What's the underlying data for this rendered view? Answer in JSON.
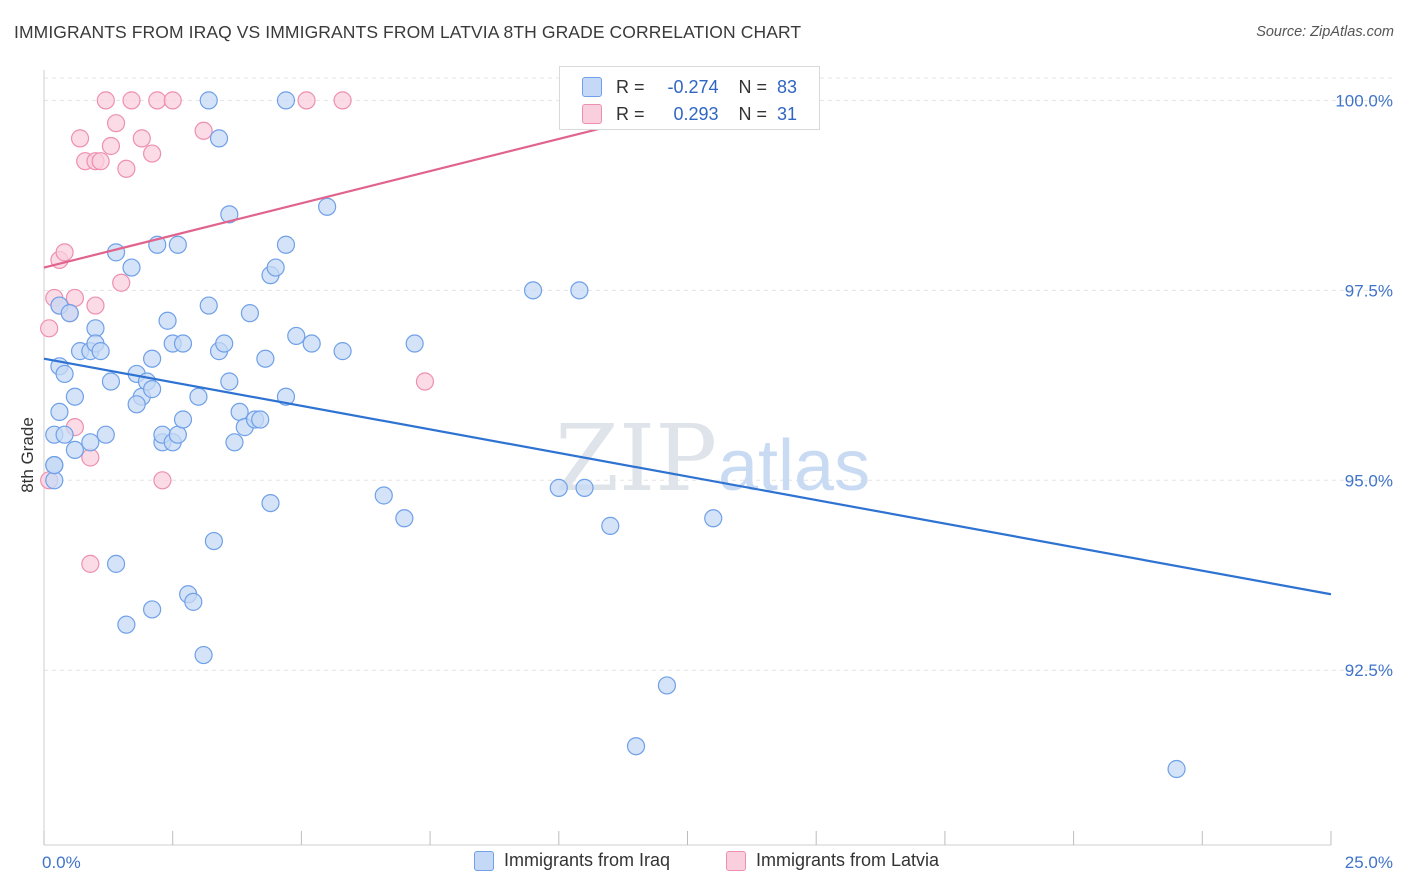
{
  "title": "IMMIGRANTS FROM IRAQ VS IMMIGRANTS FROM LATVIA 8TH GRADE CORRELATION CHART",
  "source": "Source: ZipAtlas.com",
  "watermark": {
    "zip": "ZIP",
    "atlas": "atlas"
  },
  "legend": {
    "rows": [
      {
        "r_label": "R =",
        "r_value": "-0.274",
        "n_label": "N =",
        "n_value": "83"
      },
      {
        "r_label": "R =",
        "r_value": "0.293",
        "n_label": "N =",
        "n_value": "31"
      }
    ]
  },
  "bottom_legend": [
    {
      "label": "Immigrants from Iraq"
    },
    {
      "label": "Immigrants from Latvia"
    }
  ],
  "chart_data": {
    "type": "scatter",
    "title": "IMMIGRANTS FROM IRAQ VS IMMIGRANTS FROM LATVIA 8TH GRADE CORRELATION CHART",
    "xlabel": "",
    "ylabel": "8th Grade",
    "xlim": [
      0,
      25
    ],
    "ylim": [
      90.2,
      100.4
    ],
    "x_tick_labels": [
      "0.0%",
      "25.0%"
    ],
    "y_tick_labels": [
      "100.0%",
      "97.5%",
      "95.0%",
      "92.5%"
    ],
    "y_ticks": [
      100.0,
      97.5,
      95.0,
      92.5
    ],
    "grid": true,
    "legend_position": "top-center",
    "colors": {
      "iraq": "#6fa0e8",
      "iraq_fill": "#c5d9f6",
      "latvia": "#ee8fb0",
      "latvia_fill": "#f9cfdd",
      "iraq_line": "#2e72d2",
      "latvia_line": "#e0648e",
      "tick_label": "#3f74c9"
    },
    "series": [
      {
        "name": "Immigrants from Iraq",
        "trend": {
          "x": [
            0,
            25
          ],
          "y": [
            96.6,
            93.5
          ]
        },
        "points": [
          [
            0.2,
            95.0
          ],
          [
            0.2,
            95.6
          ],
          [
            0.2,
            95.2
          ],
          [
            0.3,
            95.9
          ],
          [
            0.3,
            96.5
          ],
          [
            0.3,
            97.3
          ],
          [
            0.4,
            95.6
          ],
          [
            0.4,
            96.4
          ],
          [
            0.5,
            97.2
          ],
          [
            0.6,
            95.4
          ],
          [
            0.6,
            96.1
          ],
          [
            0.7,
            96.7
          ],
          [
            0.9,
            95.5
          ],
          [
            0.9,
            96.7
          ],
          [
            1.0,
            97.0
          ],
          [
            1.0,
            96.8
          ],
          [
            1.1,
            96.7
          ],
          [
            1.2,
            95.6
          ],
          [
            1.3,
            96.3
          ],
          [
            1.4,
            93.9
          ],
          [
            1.4,
            98.0
          ],
          [
            1.6,
            93.1
          ],
          [
            1.7,
            97.8
          ],
          [
            1.8,
            96.4
          ],
          [
            1.9,
            96.1
          ],
          [
            2.0,
            96.3
          ],
          [
            2.1,
            96.6
          ],
          [
            2.1,
            96.2
          ],
          [
            2.1,
            93.3
          ],
          [
            2.2,
            98.1
          ],
          [
            2.3,
            95.5
          ],
          [
            2.3,
            95.6
          ],
          [
            2.4,
            97.1
          ],
          [
            2.5,
            95.5
          ],
          [
            2.5,
            96.8
          ],
          [
            2.6,
            98.1
          ],
          [
            2.6,
            95.6
          ],
          [
            2.7,
            95.8
          ],
          [
            2.7,
            96.8
          ],
          [
            2.8,
            93.5
          ],
          [
            2.9,
            93.4
          ],
          [
            3.0,
            96.1
          ],
          [
            3.1,
            92.7
          ],
          [
            3.2,
            97.3
          ],
          [
            3.2,
            100.0
          ],
          [
            3.3,
            94.2
          ],
          [
            3.4,
            99.5
          ],
          [
            3.4,
            96.7
          ],
          [
            3.5,
            96.8
          ],
          [
            3.6,
            96.3
          ],
          [
            3.6,
            98.5
          ],
          [
            3.7,
            95.5
          ],
          [
            3.8,
            95.9
          ],
          [
            3.9,
            95.7
          ],
          [
            4.0,
            97.2
          ],
          [
            4.1,
            95.8
          ],
          [
            4.2,
            95.8
          ],
          [
            4.3,
            96.6
          ],
          [
            4.4,
            94.7
          ],
          [
            4.4,
            97.7
          ],
          [
            4.5,
            97.8
          ],
          [
            4.7,
            98.1
          ],
          [
            4.7,
            96.1
          ],
          [
            4.7,
            100.0
          ],
          [
            4.9,
            96.9
          ],
          [
            5.2,
            96.8
          ],
          [
            5.5,
            98.6
          ],
          [
            5.8,
            96.7
          ],
          [
            6.6,
            94.8
          ],
          [
            7.0,
            94.5
          ],
          [
            7.2,
            96.8
          ],
          [
            9.5,
            97.5
          ],
          [
            10.0,
            94.9
          ],
          [
            10.4,
            97.5
          ],
          [
            10.5,
            94.9
          ],
          [
            11.0,
            94.4
          ],
          [
            11.5,
            91.5
          ],
          [
            12.1,
            92.3
          ],
          [
            13.0,
            94.5
          ],
          [
            14.8,
            100.0
          ],
          [
            22.0,
            91.2
          ],
          [
            0.2,
            95.2
          ],
          [
            1.8,
            96.0
          ]
        ]
      },
      {
        "name": "Immigrants from Latvia",
        "trend": {
          "x": [
            0,
            13.0
          ],
          "y": [
            97.8,
            100.0
          ]
        },
        "points": [
          [
            0.1,
            95.0
          ],
          [
            0.1,
            97.0
          ],
          [
            0.2,
            97.4
          ],
          [
            0.3,
            97.3
          ],
          [
            0.3,
            97.9
          ],
          [
            0.4,
            98.0
          ],
          [
            0.5,
            97.2
          ],
          [
            0.6,
            97.4
          ],
          [
            0.6,
            95.7
          ],
          [
            0.7,
            99.5
          ],
          [
            0.8,
            99.2
          ],
          [
            0.9,
            95.3
          ],
          [
            0.9,
            93.9
          ],
          [
            1.0,
            99.2
          ],
          [
            1.0,
            97.3
          ],
          [
            1.1,
            99.2
          ],
          [
            1.2,
            100.0
          ],
          [
            1.3,
            99.4
          ],
          [
            1.4,
            99.7
          ],
          [
            1.5,
            97.6
          ],
          [
            1.6,
            99.1
          ],
          [
            1.7,
            100.0
          ],
          [
            1.9,
            99.5
          ],
          [
            2.1,
            99.3
          ],
          [
            2.2,
            100.0
          ],
          [
            2.3,
            95.0
          ],
          [
            2.5,
            100.0
          ],
          [
            3.1,
            99.6
          ],
          [
            5.1,
            100.0
          ],
          [
            5.8,
            100.0
          ],
          [
            7.4,
            96.3
          ]
        ]
      }
    ]
  }
}
